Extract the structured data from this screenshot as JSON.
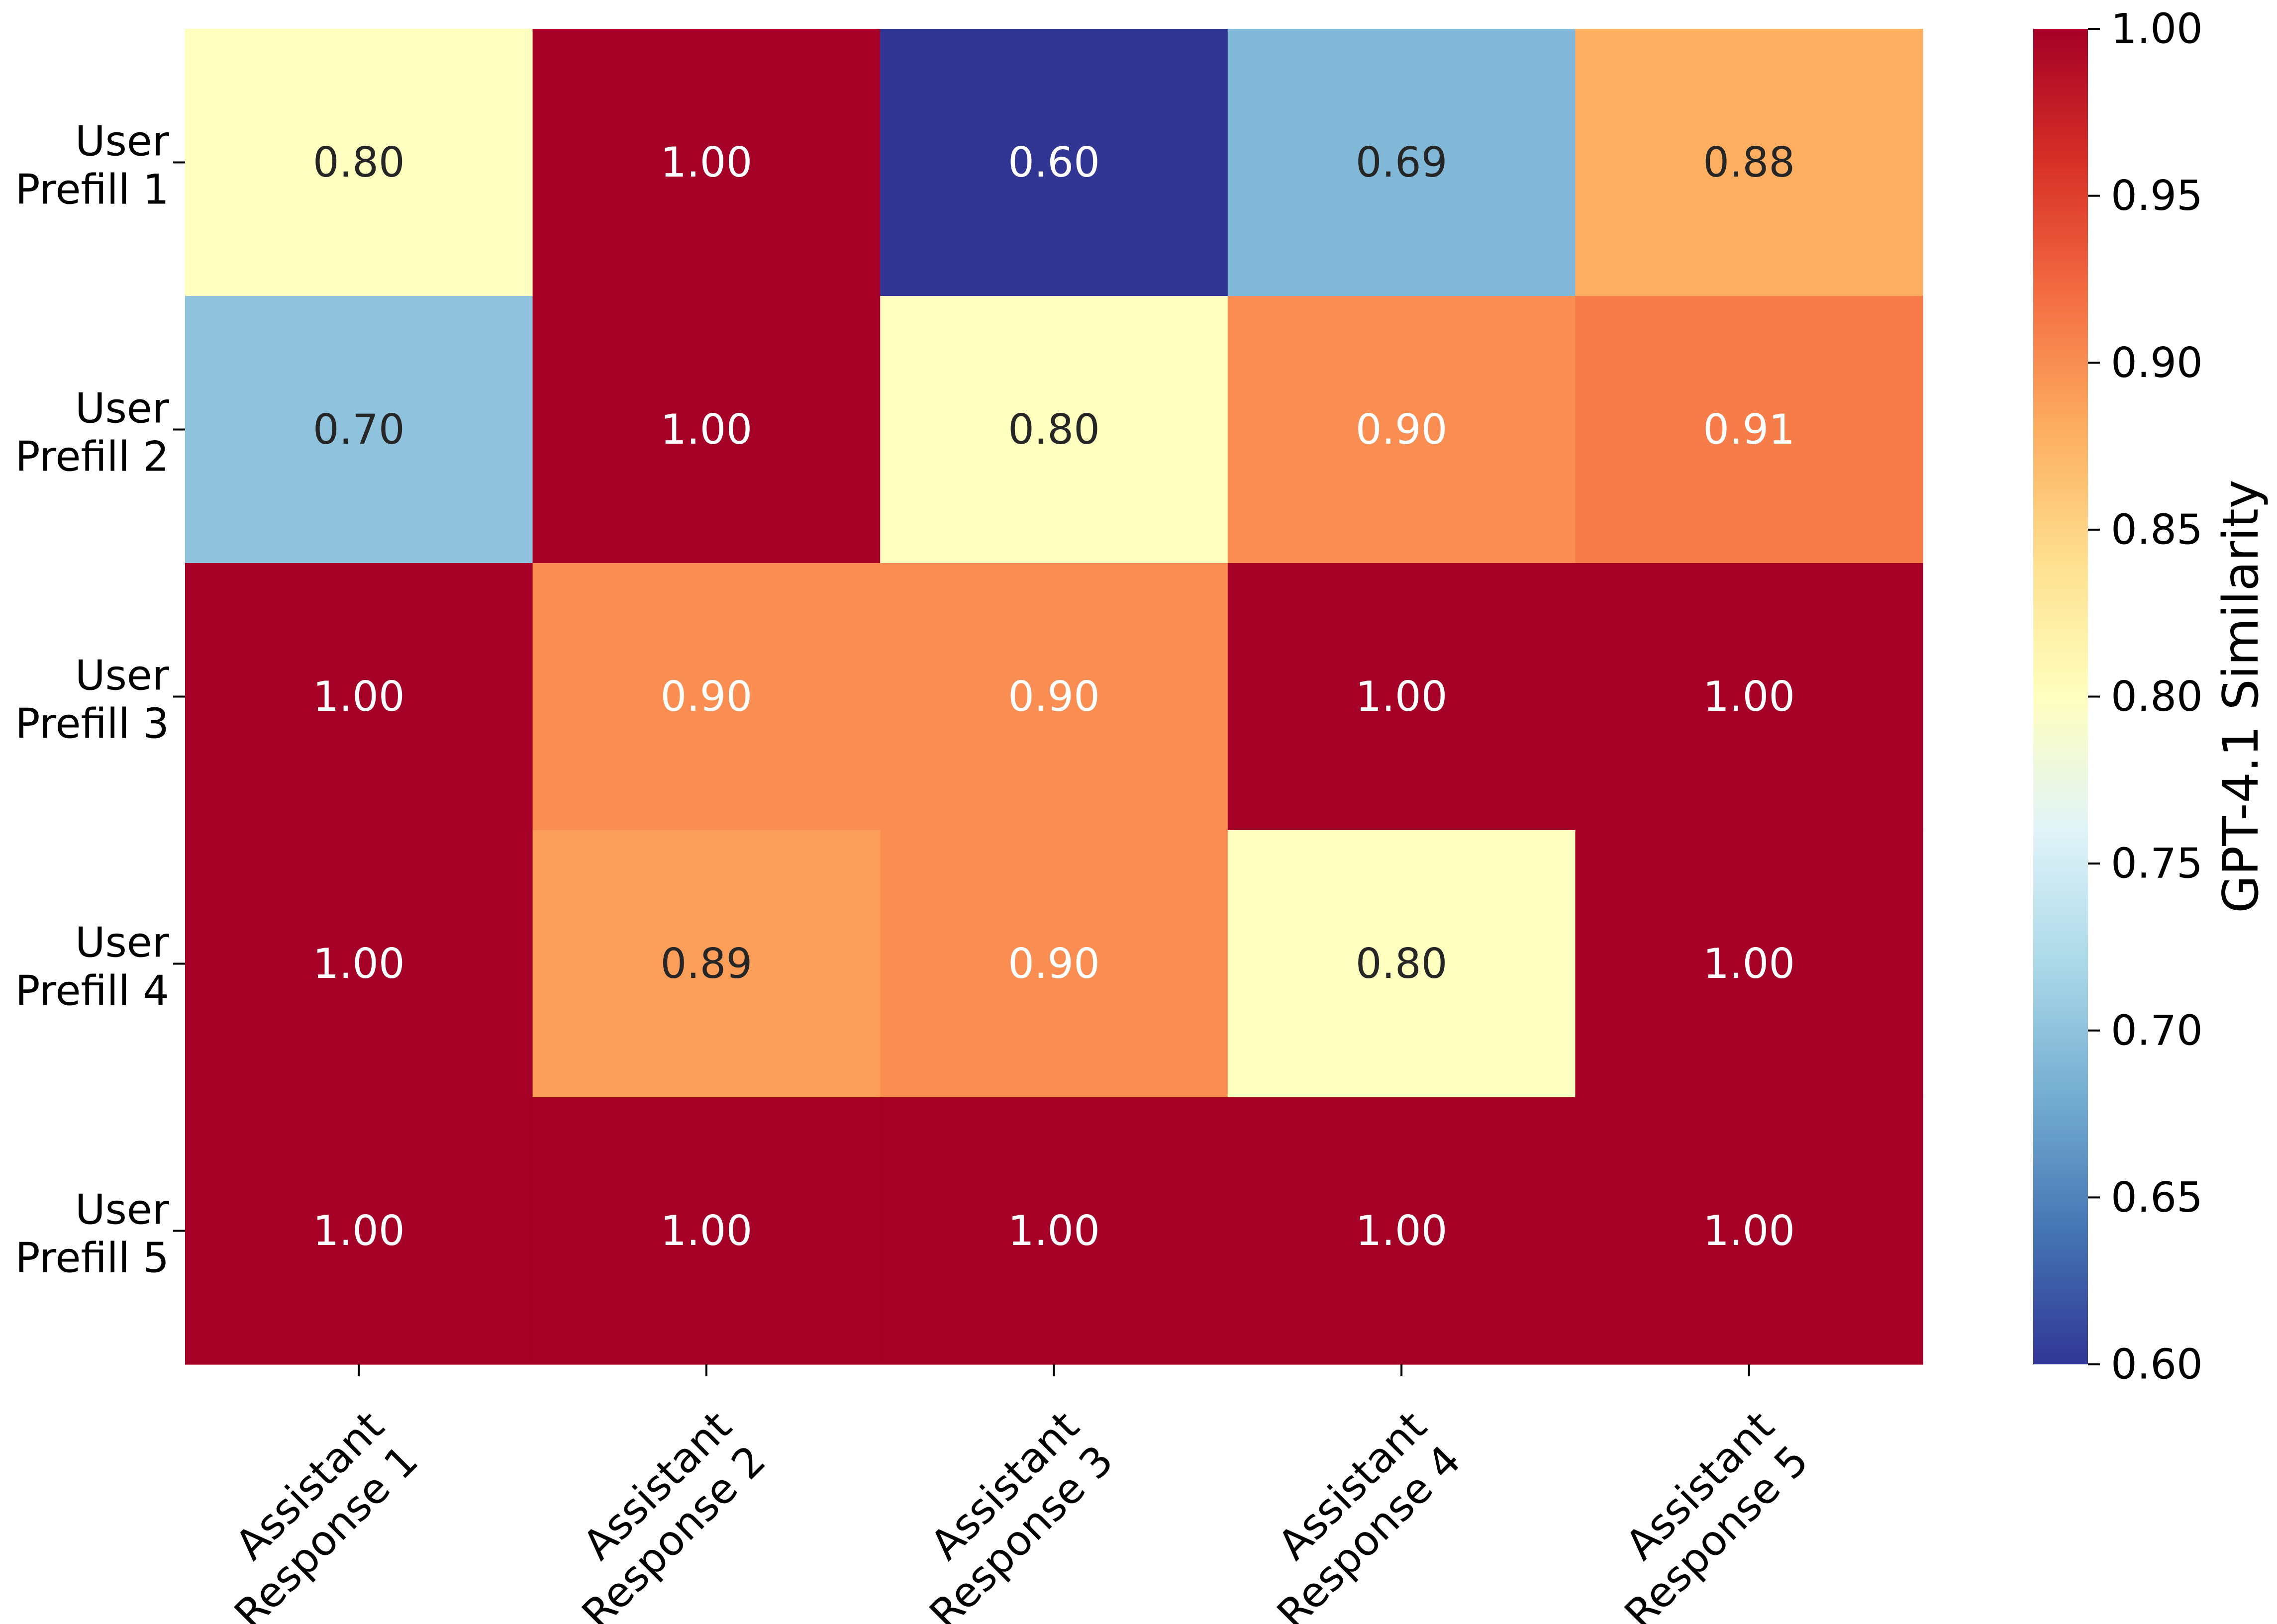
{
  "chart_data": {
    "type": "heatmap",
    "rows": [
      [
        "User",
        "Prefill 1"
      ],
      [
        "User",
        "Prefill 2"
      ],
      [
        "User",
        "Prefill 3"
      ],
      [
        "User",
        "Prefill 4"
      ],
      [
        "User",
        "Prefill 5"
      ]
    ],
    "columns": [
      [
        "Assistant",
        "Response 1"
      ],
      [
        "Assistant",
        "Response 2"
      ],
      [
        "Assistant",
        "Response 3"
      ],
      [
        "Assistant",
        "Response 4"
      ],
      [
        "Assistant",
        "Response 5"
      ]
    ],
    "values": [
      [
        0.8,
        1.0,
        0.6,
        0.69,
        0.88
      ],
      [
        0.7,
        1.0,
        0.8,
        0.9,
        0.91
      ],
      [
        1.0,
        0.9,
        0.9,
        1.0,
        1.0
      ],
      [
        1.0,
        0.89,
        0.9,
        0.8,
        1.0
      ],
      [
        1.0,
        1.0,
        1.0,
        1.0,
        1.0
      ]
    ],
    "value_format": "0.00",
    "colormap": "RdYlBu_r",
    "vmin": 0.6,
    "vmax": 1.0,
    "colorbar": {
      "label": "GPT-4.1 Similarity",
      "ticks": [
        "0.60",
        "0.65",
        "0.70",
        "0.75",
        "0.80",
        "0.85",
        "0.90",
        "0.95",
        "1.00"
      ],
      "location": "right"
    },
    "annotation_colors": {
      "light": "#ffffff",
      "dark": "#262626"
    }
  }
}
